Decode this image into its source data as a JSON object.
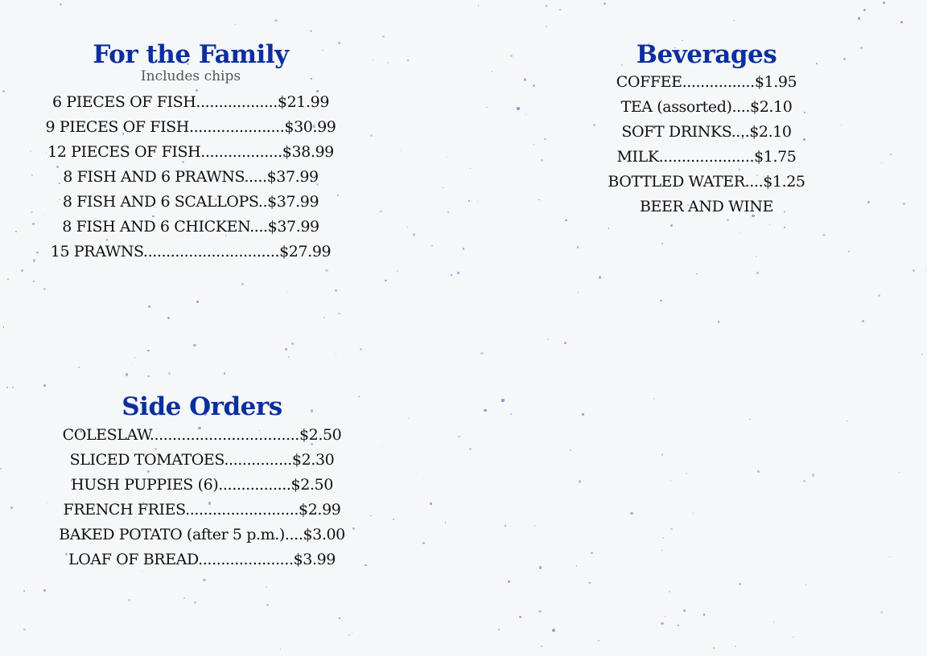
{
  "family": {
    "title": "For the Family",
    "subtitle": "Includes chips",
    "items": [
      "6 PIECES OF FISH..................$21.99",
      "9 PIECES OF FISH.....................$30.99",
      "12 PIECES OF FISH..................$38.99",
      "8 FISH AND 6 PRAWNS.....$37.99",
      "8 FISH AND 6 SCALLOPS..$37.99",
      "8 FISH AND 6 CHICKEN....$37.99",
      "15 PRAWNS..............................$27.99"
    ]
  },
  "sides": {
    "title": "Side Orders",
    "items": [
      "COLESLAW.................................$2.50",
      "SLICED TOMATOES...............$2.30",
      "HUSH PUPPIES (6)................$2.50",
      "FRENCH FRIES.........................$2.99",
      "BAKED POTATO (after 5 p.m.)....$3.00",
      "LOAF OF BREAD.....................$3.99"
    ]
  },
  "beverages": {
    "title": "Beverages",
    "items": [
      "COFFEE................$1.95",
      "TEA (assorted)....$2.10",
      "SOFT DRINKS....$2.10",
      "MILK.....................$1.75",
      "BOTTLED WATER....$1.25",
      "BEER AND WINE"
    ]
  },
  "colors": {
    "heading": "#0b2f9f",
    "text": "#111111",
    "subtitle": "#555555",
    "background": "#f6f7f9",
    "speckle": "#6f7fcf"
  }
}
